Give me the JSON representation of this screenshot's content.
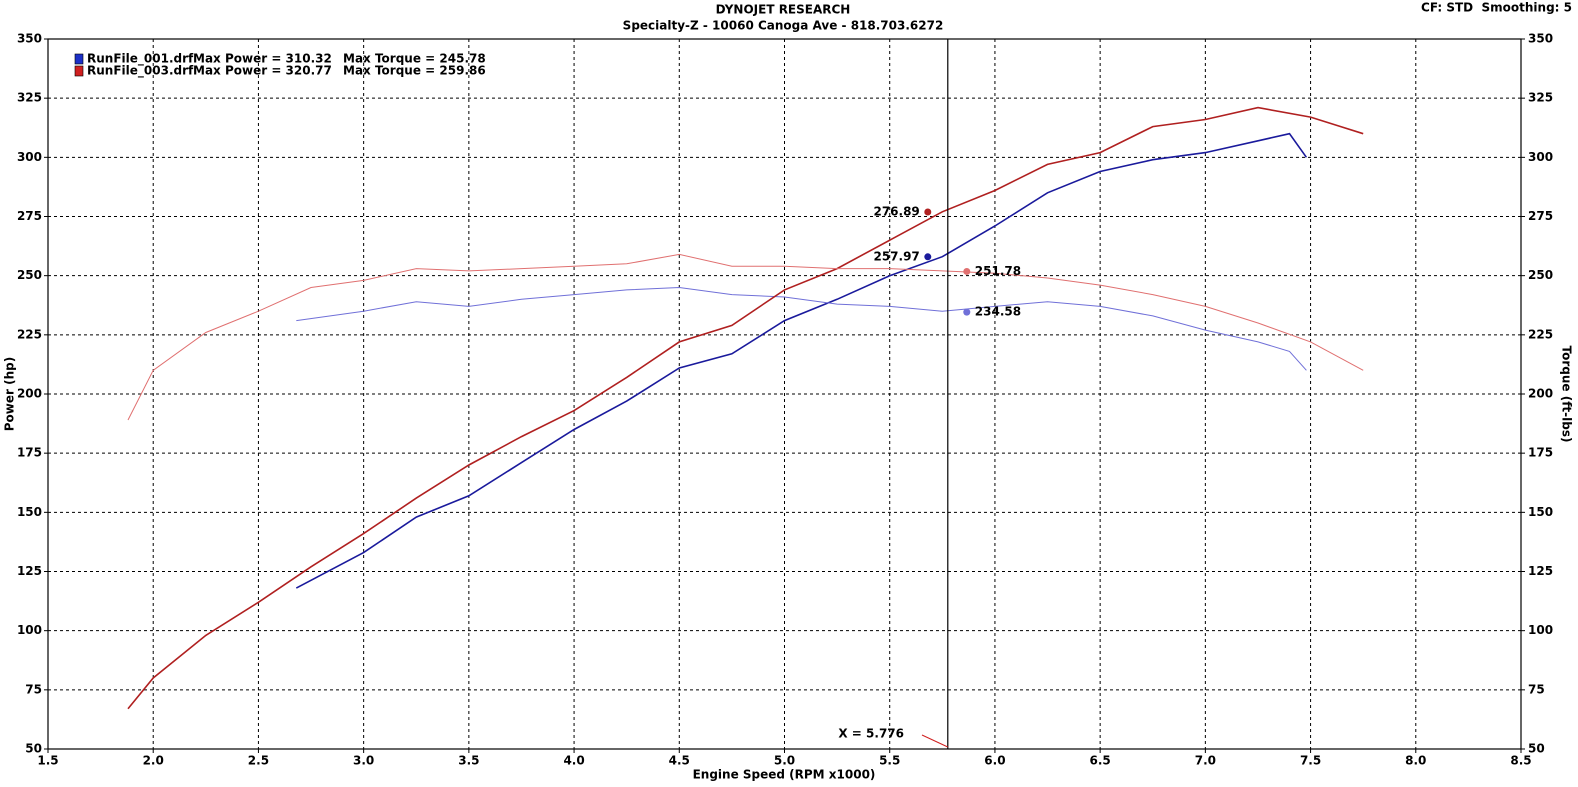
{
  "chart_data": {
    "type": "line",
    "title": "DYNOJET RESEARCH",
    "subtitle": "Specialty-Z - 10060 Canoga Ave - 818.703.6272",
    "settings_text": "CF: STD  Smoothing: 5",
    "x_label": "Engine Speed (RPM x1000)",
    "y_label": "Power (hp)",
    "y2_label": "Torque (ft-lbs)",
    "xlim": [
      1.5,
      8.5
    ],
    "xticks": [
      1.5,
      {
        "value": 2,
        "label": "2.0"
      },
      2.5,
      {
        "value": 3,
        "label": "3.0"
      },
      3.5,
      {
        "value": 4,
        "label": "4.0"
      },
      4.5,
      {
        "value": 5,
        "label": "5.0"
      },
      5.5,
      {
        "value": 6,
        "label": "6.0"
      },
      6.5,
      {
        "value": 7,
        "label": "7.0"
      },
      7.5,
      {
        "value": 8,
        "label": "8.0"
      },
      8.5
    ],
    "ylim": [
      50,
      350
    ],
    "yticks": [
      50,
      75,
      100,
      125,
      150,
      175,
      200,
      225,
      250,
      275,
      300,
      325,
      350
    ],
    "y2lim": [
      50,
      350
    ],
    "y2ticks": [
      50,
      75,
      100,
      125,
      150,
      175,
      200,
      225,
      250,
      275,
      300,
      325,
      350
    ],
    "grid": true,
    "legend": [
      {
        "name": "RunFile_001.drf",
        "power": "Max Power = 310.32",
        "torque": "Max Torque = 245.78",
        "color": "#1c30c8"
      },
      {
        "name": "RunFile_003.drf",
        "power": "Max Power = 320.77",
        "torque": "Max Torque = 259.86",
        "color": "#d02020"
      }
    ],
    "series": [
      {
        "color": "#1a1a9c",
        "axis": "y",
        "x": [
          2.68,
          3.0,
          3.25,
          3.5,
          3.75,
          4.0,
          4.25,
          4.5,
          4.75,
          5.0,
          5.25,
          5.5,
          5.75,
          6.0,
          6.25,
          6.5,
          6.75,
          7.0,
          7.25,
          7.4,
          7.48
        ],
        "values": [
          118,
          133,
          148,
          157,
          171,
          185,
          197,
          211,
          217,
          231,
          240,
          250,
          258,
          271,
          285,
          294,
          299,
          302,
          307,
          310,
          300
        ]
      },
      {
        "color": "#7070d8",
        "axis": "y2",
        "x": [
          2.68,
          3.0,
          3.25,
          3.5,
          3.75,
          4.0,
          4.25,
          4.5,
          4.75,
          5.0,
          5.25,
          5.5,
          5.75,
          6.0,
          6.25,
          6.5,
          6.75,
          7.0,
          7.25,
          7.4,
          7.48
        ],
        "values": [
          231,
          235,
          239,
          237,
          240,
          242,
          244,
          245,
          242,
          241,
          238,
          237,
          235,
          237,
          239,
          237,
          233,
          227,
          222,
          218,
          210
        ]
      },
      {
        "color": "#b02020",
        "axis": "y",
        "x": [
          1.88,
          2.0,
          2.25,
          2.5,
          2.75,
          3.0,
          3.25,
          3.5,
          3.75,
          4.0,
          4.25,
          4.5,
          4.75,
          5.0,
          5.25,
          5.5,
          5.75,
          6.0,
          6.25,
          6.5,
          6.75,
          7.0,
          7.25,
          7.5,
          7.75
        ],
        "values": [
          67,
          80,
          98,
          112,
          127,
          141,
          156,
          170,
          182,
          193,
          207,
          222,
          229,
          244,
          253,
          265,
          277,
          286,
          297,
          302,
          313,
          316,
          321,
          317,
          310
        ]
      },
      {
        "color": "#e07070",
        "axis": "y2",
        "x": [
          1.88,
          2.0,
          2.25,
          2.5,
          2.75,
          3.0,
          3.25,
          3.5,
          3.75,
          4.0,
          4.25,
          4.5,
          4.75,
          5.0,
          5.25,
          5.5,
          5.75,
          6.0,
          6.25,
          6.5,
          6.75,
          7.0,
          7.25,
          7.5,
          7.75
        ],
        "values": [
          189,
          210,
          226,
          235,
          245,
          248,
          253,
          252,
          253,
          254,
          255,
          259,
          254,
          254,
          253,
          253,
          252,
          251,
          249,
          246,
          242,
          237,
          230,
          222,
          210
        ]
      }
    ],
    "cursor": {
      "x": 5.776,
      "label": "X = 5.776",
      "values": [
        257.97,
        234.58,
        276.89,
        251.78
      ]
    }
  }
}
